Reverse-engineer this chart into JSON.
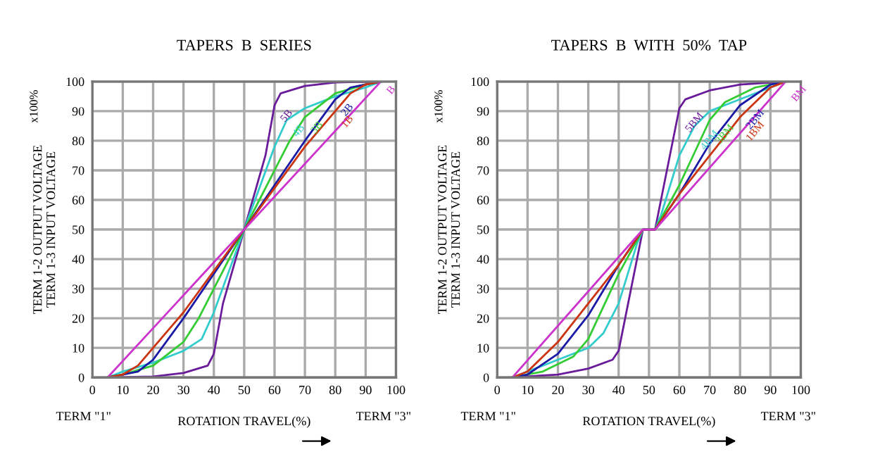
{
  "chart_data": [
    {
      "type": "line",
      "title": "TAPERS  B  SERIES",
      "xlabel": "ROTATION TRAVEL(%)",
      "ylabel": "TERM 1-2 OUTPUT VOLTAGE\nTERM 1-3 INPUT VOLTAGE",
      "annotations": [
        "TERM \"1\"",
        "TERM \"3\"",
        "x100%"
      ],
      "xlim": [
        0,
        100
      ],
      "ylim": [
        0,
        100
      ],
      "xticks": [
        0,
        10,
        20,
        30,
        40,
        50,
        60,
        70,
        80,
        90,
        100
      ],
      "yticks": [
        0,
        10,
        20,
        30,
        40,
        50,
        60,
        70,
        80,
        90,
        100
      ],
      "grid": true,
      "legend": false,
      "line_style": "solid",
      "marker": "none",
      "series": [
        {
          "name": "5B",
          "color": "#6a1b9a",
          "x": [
            5,
            20,
            30,
            38,
            40,
            43,
            50,
            57,
            60,
            62,
            70,
            80,
            95
          ],
          "values": [
            0,
            0.3,
            1.5,
            4,
            8,
            25,
            50,
            75,
            92,
            96,
            98.5,
            99.7,
            100
          ]
        },
        {
          "name": "4B",
          "color": "#33cccc",
          "x": [
            5,
            10,
            20,
            30,
            36,
            40,
            45,
            50,
            55,
            60,
            64,
            70,
            80,
            90,
            95
          ],
          "values": [
            0,
            2,
            5,
            9,
            13,
            22,
            36,
            50,
            64,
            78,
            87,
            91,
            95,
            98,
            100
          ]
        },
        {
          "name": "3B",
          "color": "#33cc33",
          "x": [
            5,
            10,
            20,
            30,
            35,
            40,
            45,
            50,
            55,
            60,
            65,
            70,
            80,
            90,
            95
          ],
          "values": [
            0,
            1,
            4,
            12,
            20,
            30,
            40,
            50,
            60,
            70,
            80,
            88,
            96,
            99,
            100
          ]
        },
        {
          "name": "2B",
          "color": "#1a1aa6",
          "x": [
            5,
            10,
            15,
            20,
            30,
            40,
            50,
            60,
            70,
            80,
            85,
            90,
            95
          ],
          "values": [
            0,
            1,
            2,
            6,
            20,
            35,
            50,
            65,
            80,
            94,
            98,
            99,
            100
          ]
        },
        {
          "name": "1B",
          "color": "#cc3311",
          "x": [
            5,
            10,
            15,
            20,
            30,
            40,
            50,
            60,
            70,
            80,
            85,
            90,
            95
          ],
          "values": [
            0,
            1,
            4,
            10,
            22,
            36,
            50,
            64,
            78,
            90,
            96,
            99,
            100
          ]
        },
        {
          "name": "B",
          "color": "#cc33cc",
          "x": [
            5,
            50,
            95
          ],
          "values": [
            0,
            50,
            100
          ]
        }
      ]
    },
    {
      "type": "line",
      "title": "TAPERS  B  WITH  50%  TAP",
      "xlabel": "ROTATION TRAVEL(%)",
      "ylabel": "TERM 1-2 OUTPUT VOLTAGE\nTERM 1-3 INPUT VOLTAGE",
      "annotations": [
        "TERM \"1\"",
        "TERM \"3\"",
        "x100%"
      ],
      "xlim": [
        0,
        100
      ],
      "ylim": [
        0,
        100
      ],
      "xticks": [
        0,
        10,
        20,
        30,
        40,
        50,
        60,
        70,
        80,
        90,
        100
      ],
      "yticks": [
        0,
        10,
        20,
        30,
        40,
        50,
        60,
        70,
        80,
        90,
        100
      ],
      "grid": true,
      "legend": false,
      "line_style": "solid",
      "marker": "none",
      "series": [
        {
          "name": "5BM",
          "color": "#6a1b9a",
          "x": [
            5,
            20,
            30,
            38,
            40,
            48,
            52,
            60,
            62,
            70,
            80,
            95
          ],
          "values": [
            0,
            1,
            3,
            6,
            9,
            50,
            50,
            91,
            94,
            97,
            99,
            100
          ]
        },
        {
          "name": "4BM",
          "color": "#33cccc",
          "x": [
            5,
            10,
            20,
            30,
            35,
            40,
            46,
            48,
            52,
            54,
            60,
            65,
            70,
            80,
            90,
            95
          ],
          "values": [
            0,
            2,
            6,
            10,
            15,
            25,
            45,
            50,
            50,
            55,
            75,
            85,
            90,
            94,
            98,
            100
          ]
        },
        {
          "name": "3BM",
          "color": "#33cc33",
          "x": [
            5,
            15,
            25,
            30,
            35,
            40,
            48,
            52,
            60,
            65,
            70,
            75,
            85,
            95
          ],
          "values": [
            0,
            2,
            7,
            13,
            24,
            35,
            50,
            50,
            65,
            76,
            87,
            93,
            98,
            100
          ]
        },
        {
          "name": "2BM",
          "color": "#1a1aa6",
          "x": [
            5,
            10,
            20,
            30,
            40,
            48,
            52,
            60,
            70,
            80,
            90,
            95
          ],
          "values": [
            0,
            1,
            8,
            21,
            38,
            50,
            50,
            62,
            79,
            92,
            99,
            100
          ]
        },
        {
          "name": "1BM",
          "color": "#cc3311",
          "x": [
            5,
            10,
            20,
            30,
            40,
            48,
            52,
            60,
            70,
            80,
            90,
            95
          ],
          "values": [
            0,
            2,
            12,
            25,
            38,
            50,
            50,
            62,
            75,
            88,
            98,
            100
          ]
        },
        {
          "name": "BM",
          "color": "#cc33cc",
          "x": [
            5,
            48,
            52,
            95
          ],
          "values": [
            0,
            50,
            50,
            100
          ]
        }
      ]
    }
  ]
}
